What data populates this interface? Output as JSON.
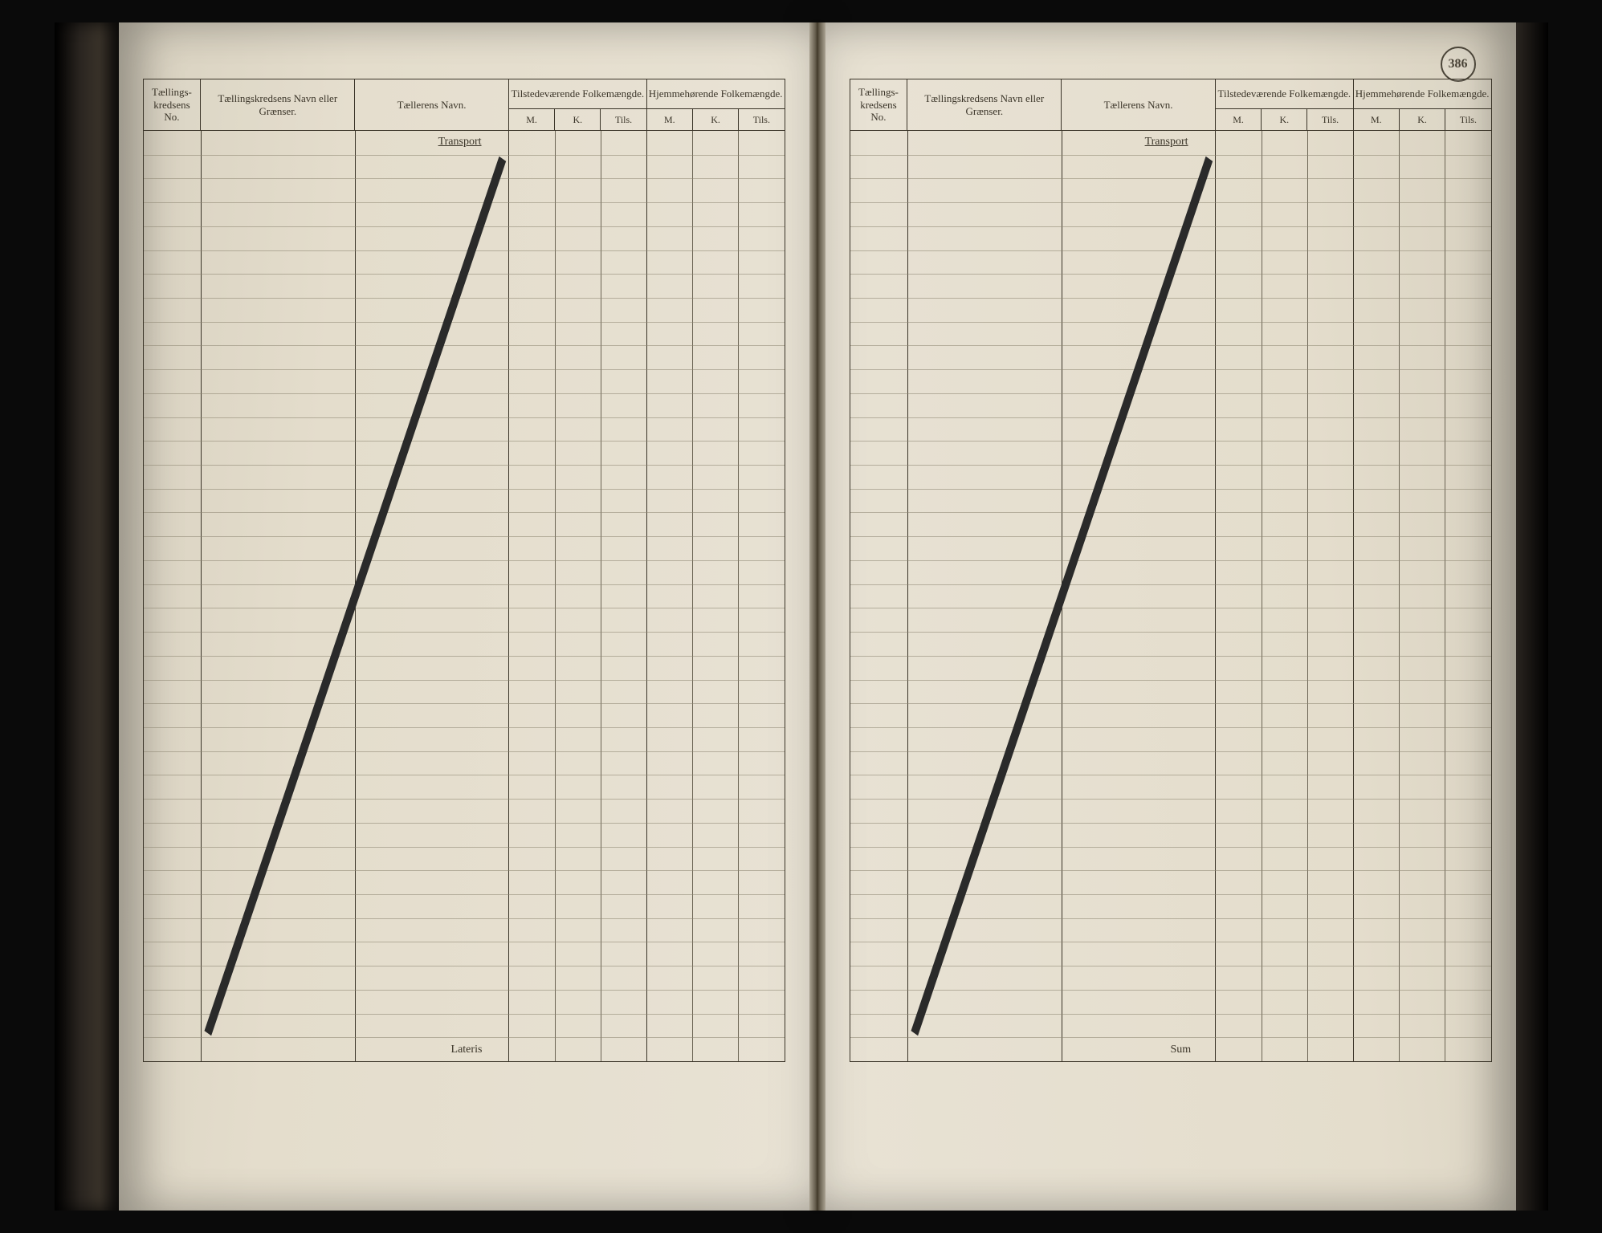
{
  "document": {
    "page_number_stamp": "386",
    "row_count": 38,
    "columns": {
      "no": "Tællings-\nkredsens No.",
      "navn": "Tællingskredsens Navn eller Grænser.",
      "taeller": "Tællerens Navn.",
      "group_tilstede": "Tilstedeværende\nFolkemængde.",
      "group_hjemme": "Hjemmehørende\nFolkemængde.",
      "sub_m": "M.",
      "sub_k": "K.",
      "sub_tils": "Tils."
    },
    "labels": {
      "transport": "Transport",
      "lateris": "Lateris",
      "sum": "Sum"
    },
    "col_widths_pct": {
      "no": 9,
      "navn": 24,
      "taeller": 24,
      "mkt": 7.1667
    },
    "diagonal": {
      "x1_pct": 10,
      "y1_pct": 97,
      "x2_pct": 56,
      "y2_pct": 3
    },
    "colors": {
      "ink": "#3a3428",
      "rule": "#6b6454",
      "paper_light": "#e8e2d4",
      "paper_dark": "#d0c8b6"
    }
  }
}
